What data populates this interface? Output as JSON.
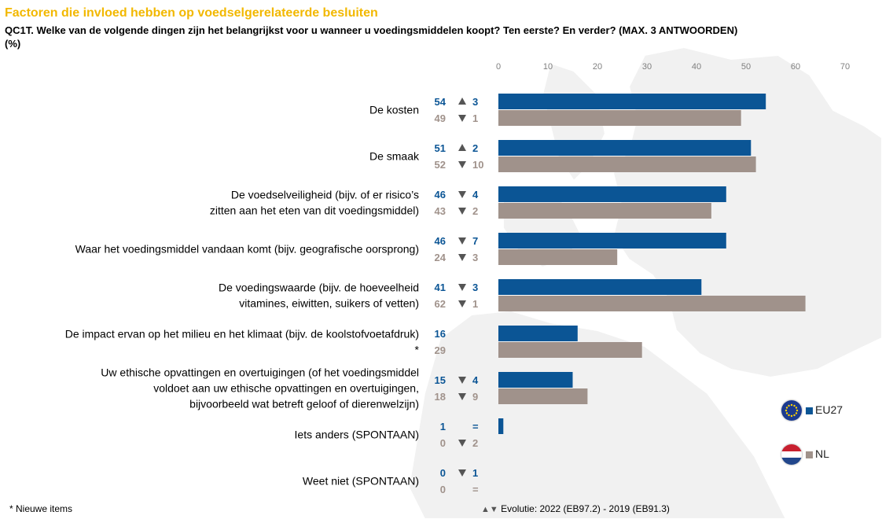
{
  "header": {
    "title": "Factoren die invloed hebben op voedselgerelateerde besluiten",
    "subtitle": "QC1T. Welke van de volgende dingen zijn het belangrijkst voor u wanneer u voedingsmiddelen koopt? Ten eerste? En verder? (MAX. 3 ANTWOORDEN)",
    "unit": "(%)"
  },
  "chart_data": {
    "type": "bar",
    "orientation": "horizontal",
    "xlim": [
      0,
      70
    ],
    "ticks": [
      "0",
      "10",
      "20",
      "30",
      "40",
      "50",
      "60",
      "70"
    ],
    "categories": [
      [
        "De kosten"
      ],
      [
        "De smaak"
      ],
      [
        "De voedselveiligheid (bijv. of er risico’s",
        "zitten aan het eten van dit voedingsmiddel)"
      ],
      [
        "Waar het voedingsmiddel vandaan komt (bijv. geografische oorsprong)"
      ],
      [
        "De voedingswaarde (bijv. de hoeveelheid",
        "vitamines, eiwitten, suikers of vetten)"
      ],
      [
        "De impact ervan op het milieu en het klimaat (bijv. de koolstofvoetafdruk)",
        "*"
      ],
      [
        "Uw ethische opvattingen en overtuigingen (of het voedingsmiddel",
        "voldoet aan uw ethische opvattingen en overtuigingen,",
        "bijvoorbeeld wat betreft geloof of dierenwelzijn)"
      ],
      [
        "Iets anders (SPONTAAN)"
      ],
      [
        "Weet niet (SPONTAAN)"
      ]
    ],
    "series": [
      {
        "name": "EU27",
        "color": "#0b5595",
        "values": [
          54,
          51,
          46,
          46,
          41,
          16,
          15,
          1,
          0
        ],
        "evolution": [
          {
            "dir": "up",
            "text": "3"
          },
          {
            "dir": "up",
            "text": "2"
          },
          {
            "dir": "down",
            "text": "4"
          },
          {
            "dir": "down",
            "text": "7"
          },
          {
            "dir": "down",
            "text": "3"
          },
          {
            "dir": "none",
            "text": ""
          },
          {
            "dir": "down",
            "text": "4"
          },
          {
            "dir": "none",
            "text": "="
          },
          {
            "dir": "down",
            "text": "1"
          }
        ]
      },
      {
        "name": "NL",
        "color": "#a0928b",
        "values": [
          49,
          52,
          43,
          24,
          62,
          29,
          18,
          0,
          0
        ],
        "evolution": [
          {
            "dir": "down",
            "text": "1"
          },
          {
            "dir": "down",
            "text": "10"
          },
          {
            "dir": "down",
            "text": "2"
          },
          {
            "dir": "down",
            "text": "3"
          },
          {
            "dir": "down",
            "text": "1"
          },
          {
            "dir": "none",
            "text": ""
          },
          {
            "dir": "down",
            "text": "9"
          },
          {
            "dir": "down",
            "text": "2"
          },
          {
            "dir": "none",
            "text": "="
          }
        ]
      }
    ]
  },
  "legend": {
    "eu": {
      "label": "EU27",
      "icon": "eu-flag-icon"
    },
    "nl": {
      "label": "NL",
      "icon": "nl-flag-icon"
    }
  },
  "footer": {
    "note": "* Nieuwe items",
    "evolution_arrows": "▲▼",
    "evolution_label": "Evolutie: 2022 (EB97.2) - 2019 (EB91.3)"
  },
  "colors": {
    "title": "#f2b800",
    "arrow": "#555555"
  }
}
